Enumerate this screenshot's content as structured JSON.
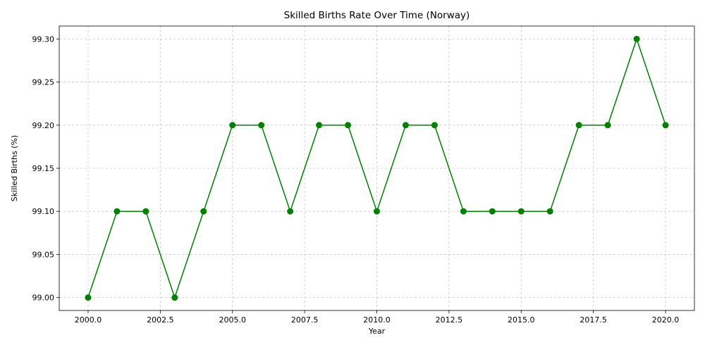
{
  "chart_data": {
    "type": "line",
    "title": "Skilled Births Rate Over Time (Norway)",
    "xlabel": "Year",
    "ylabel": "Skilled Births (%)",
    "x": [
      2000,
      2001,
      2002,
      2003,
      2004,
      2005,
      2006,
      2007,
      2008,
      2009,
      2010,
      2011,
      2012,
      2013,
      2014,
      2015,
      2016,
      2017,
      2018,
      2019,
      2020
    ],
    "series": [
      {
        "values": [
          99.0,
          99.1,
          99.1,
          99.0,
          99.1,
          99.2,
          99.2,
          99.1,
          99.2,
          99.2,
          99.1,
          99.2,
          99.2,
          99.1,
          99.1,
          99.1,
          99.1,
          99.2,
          99.2,
          99.3,
          99.2
        ],
        "color": "#008000",
        "marker": "circle"
      }
    ],
    "xlim": [
      1999,
      2021
    ],
    "ylim": [
      98.985,
      99.315
    ],
    "xticks": [
      2000.0,
      2002.5,
      2005.0,
      2007.5,
      2010.0,
      2012.5,
      2015.0,
      2017.5,
      2020.0
    ],
    "xtick_labels": [
      "2000.0",
      "2002.5",
      "2005.0",
      "2007.5",
      "2010.0",
      "2012.5",
      "2015.0",
      "2017.5",
      "2020.0"
    ],
    "yticks": [
      99.0,
      99.05,
      99.1,
      99.15,
      99.2,
      99.25,
      99.3
    ],
    "ytick_labels": [
      "99.00",
      "99.05",
      "99.10",
      "99.15",
      "99.20",
      "99.25",
      "99.30"
    ],
    "grid": true,
    "grid_style": "dashed"
  }
}
